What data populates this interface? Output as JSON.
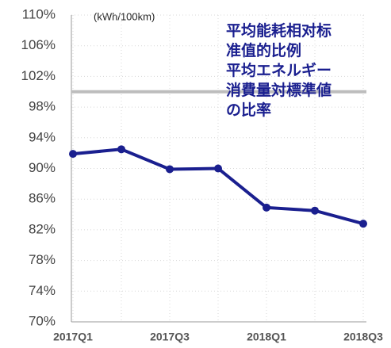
{
  "chart_data": {
    "type": "line",
    "unit_label": "(kWh/100km)",
    "annotation": [
      "平均能耗相对标",
      "准值的比例",
      "平均エネルギー",
      "消費量対標準値",
      "の比率"
    ],
    "categories": [
      "2017Q1",
      null,
      "2017Q3",
      null,
      "2018Q1",
      null,
      "2018Q3"
    ],
    "series": [
      {
        "color": "#1a1f8f",
        "values": [
          91.9,
          92.5,
          89.9,
          90.0,
          84.9,
          84.5,
          82.8
        ]
      }
    ],
    "reference_line": {
      "value": 100,
      "color": "#bdbdbd"
    },
    "ylim": [
      70,
      110
    ],
    "yticks": [
      {
        "value": 70,
        "label": "70%"
      },
      {
        "value": 74,
        "label": "74%"
      },
      {
        "value": 78,
        "label": "78%"
      },
      {
        "value": 82,
        "label": "82%"
      },
      {
        "value": 86,
        "label": "86%"
      },
      {
        "value": 90,
        "label": "90%"
      },
      {
        "value": 94,
        "label": "94%"
      },
      {
        "value": 98,
        "label": "98%"
      },
      {
        "value": 102,
        "label": "102%"
      },
      {
        "value": 106,
        "label": "106%"
      },
      {
        "value": 110,
        "label": "110%"
      }
    ],
    "grid": true
  }
}
